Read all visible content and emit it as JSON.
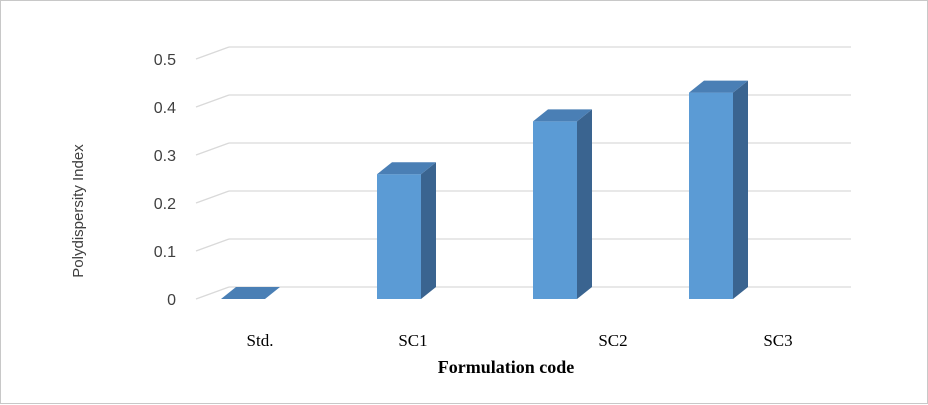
{
  "chart_data": {
    "type": "bar",
    "style": "3d-column",
    "categories": [
      "Std.",
      "SC1",
      "SC2",
      "SC3"
    ],
    "values": [
      0.0,
      0.26,
      0.37,
      0.43
    ],
    "xlabel": "Formulation code",
    "ylabel": "Polydispersity Index",
    "ylim": [
      0,
      0.5
    ],
    "yticks": [
      "0",
      "0.1",
      "0.2",
      "0.3",
      "0.4",
      "0.5"
    ],
    "grid": true,
    "legend": "none",
    "colors": {
      "bar_front": "#5b9bd5",
      "bar_side": "#3a6490",
      "bar_top": "#4a7fb5",
      "grid": "#d9d9d9",
      "floor": "#d9d9d9"
    }
  }
}
